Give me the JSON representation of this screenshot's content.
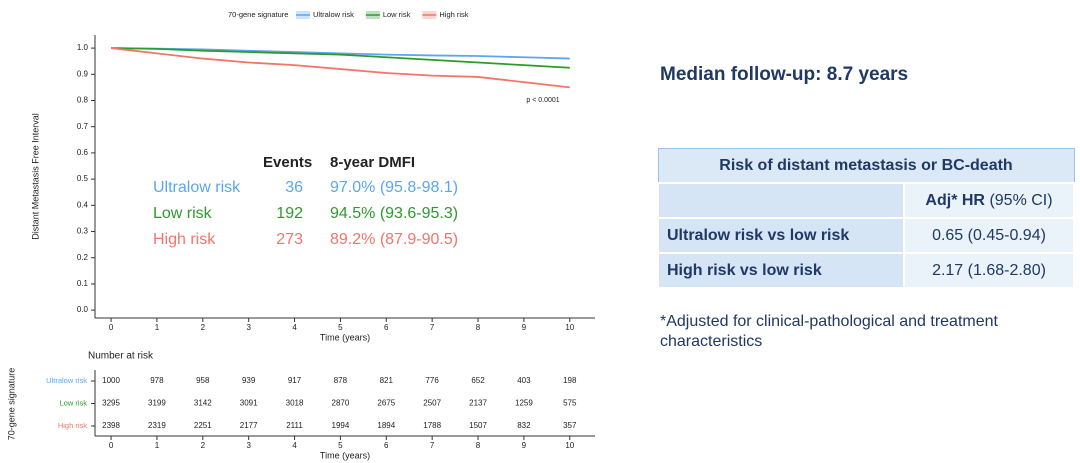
{
  "chart_data": {
    "type": "line",
    "legend_title": "70-gene signature",
    "ylabel": "Distant Metastasis Free Interval",
    "xlabel": "Time (years)",
    "annotation": "p < 0.0001",
    "x": [
      0,
      1,
      2,
      3,
      4,
      5,
      6,
      7,
      8,
      9,
      10
    ],
    "series": [
      {
        "name": "Ultralow risk",
        "color": "#5aa7f0",
        "values": [
          1.0,
          0.998,
          0.995,
          0.99,
          0.985,
          0.98,
          0.975,
          0.972,
          0.97,
          0.965,
          0.96
        ]
      },
      {
        "name": "Low risk",
        "color": "#2e9a2e",
        "values": [
          1.0,
          0.997,
          0.99,
          0.985,
          0.98,
          0.975,
          0.965,
          0.955,
          0.945,
          0.935,
          0.925
        ]
      },
      {
        "name": "High risk",
        "color": "#f0766a",
        "values": [
          1.0,
          0.98,
          0.96,
          0.945,
          0.935,
          0.92,
          0.905,
          0.895,
          0.89,
          0.87,
          0.85
        ]
      }
    ],
    "xlim": [
      -0.35,
      10.55
    ],
    "xticks": [
      0,
      1,
      2,
      3,
      4,
      5,
      6,
      7,
      8,
      9,
      10
    ],
    "ylim": [
      -0.03,
      1.05
    ],
    "yticks": [
      {
        "value": 0,
        "label": "0.0"
      },
      0.1,
      0.2,
      0.3,
      0.4,
      0.5,
      0.6,
      0.7,
      0.8,
      0.9,
      {
        "value": 1,
        "label": "1.0"
      }
    ],
    "inset_table": {
      "headers": [
        "Events",
        "8-year DMFI"
      ],
      "events": [
        36,
        192,
        273
      ],
      "dmfi": [
        "97.0% (95.8-98.1)",
        "94.5% (93.6-95.3)",
        "89.2% (87.9-90.5)"
      ]
    },
    "risk_table": {
      "title": "Number at risk",
      "label": "70-gene signature",
      "rows": [
        [
          1000,
          978,
          958,
          939,
          917,
          878,
          821,
          776,
          652,
          403,
          198
        ],
        [
          3295,
          3199,
          3142,
          3091,
          3018,
          2870,
          2675,
          2507,
          2137,
          1259,
          575
        ],
        [
          2398,
          2319,
          2251,
          2177,
          2111,
          1994,
          1894,
          1788,
          1507,
          832,
          357
        ]
      ]
    }
  },
  "median_followup": "Median follow-up: 8.7 years",
  "table": {
    "title": "Risk of distant metastasis or BC-death",
    "header_bold": "Adj* HR",
    "header_rest": "(95% CI)",
    "rows": [
      [
        "Ultralow risk vs low risk",
        "0.65 (0.45-0.94)"
      ],
      [
        "High risk vs low risk",
        "2.17 (1.68-2.80)"
      ]
    ]
  },
  "footnote": "*Adjusted for clinical-pathological and treatment characteristics"
}
